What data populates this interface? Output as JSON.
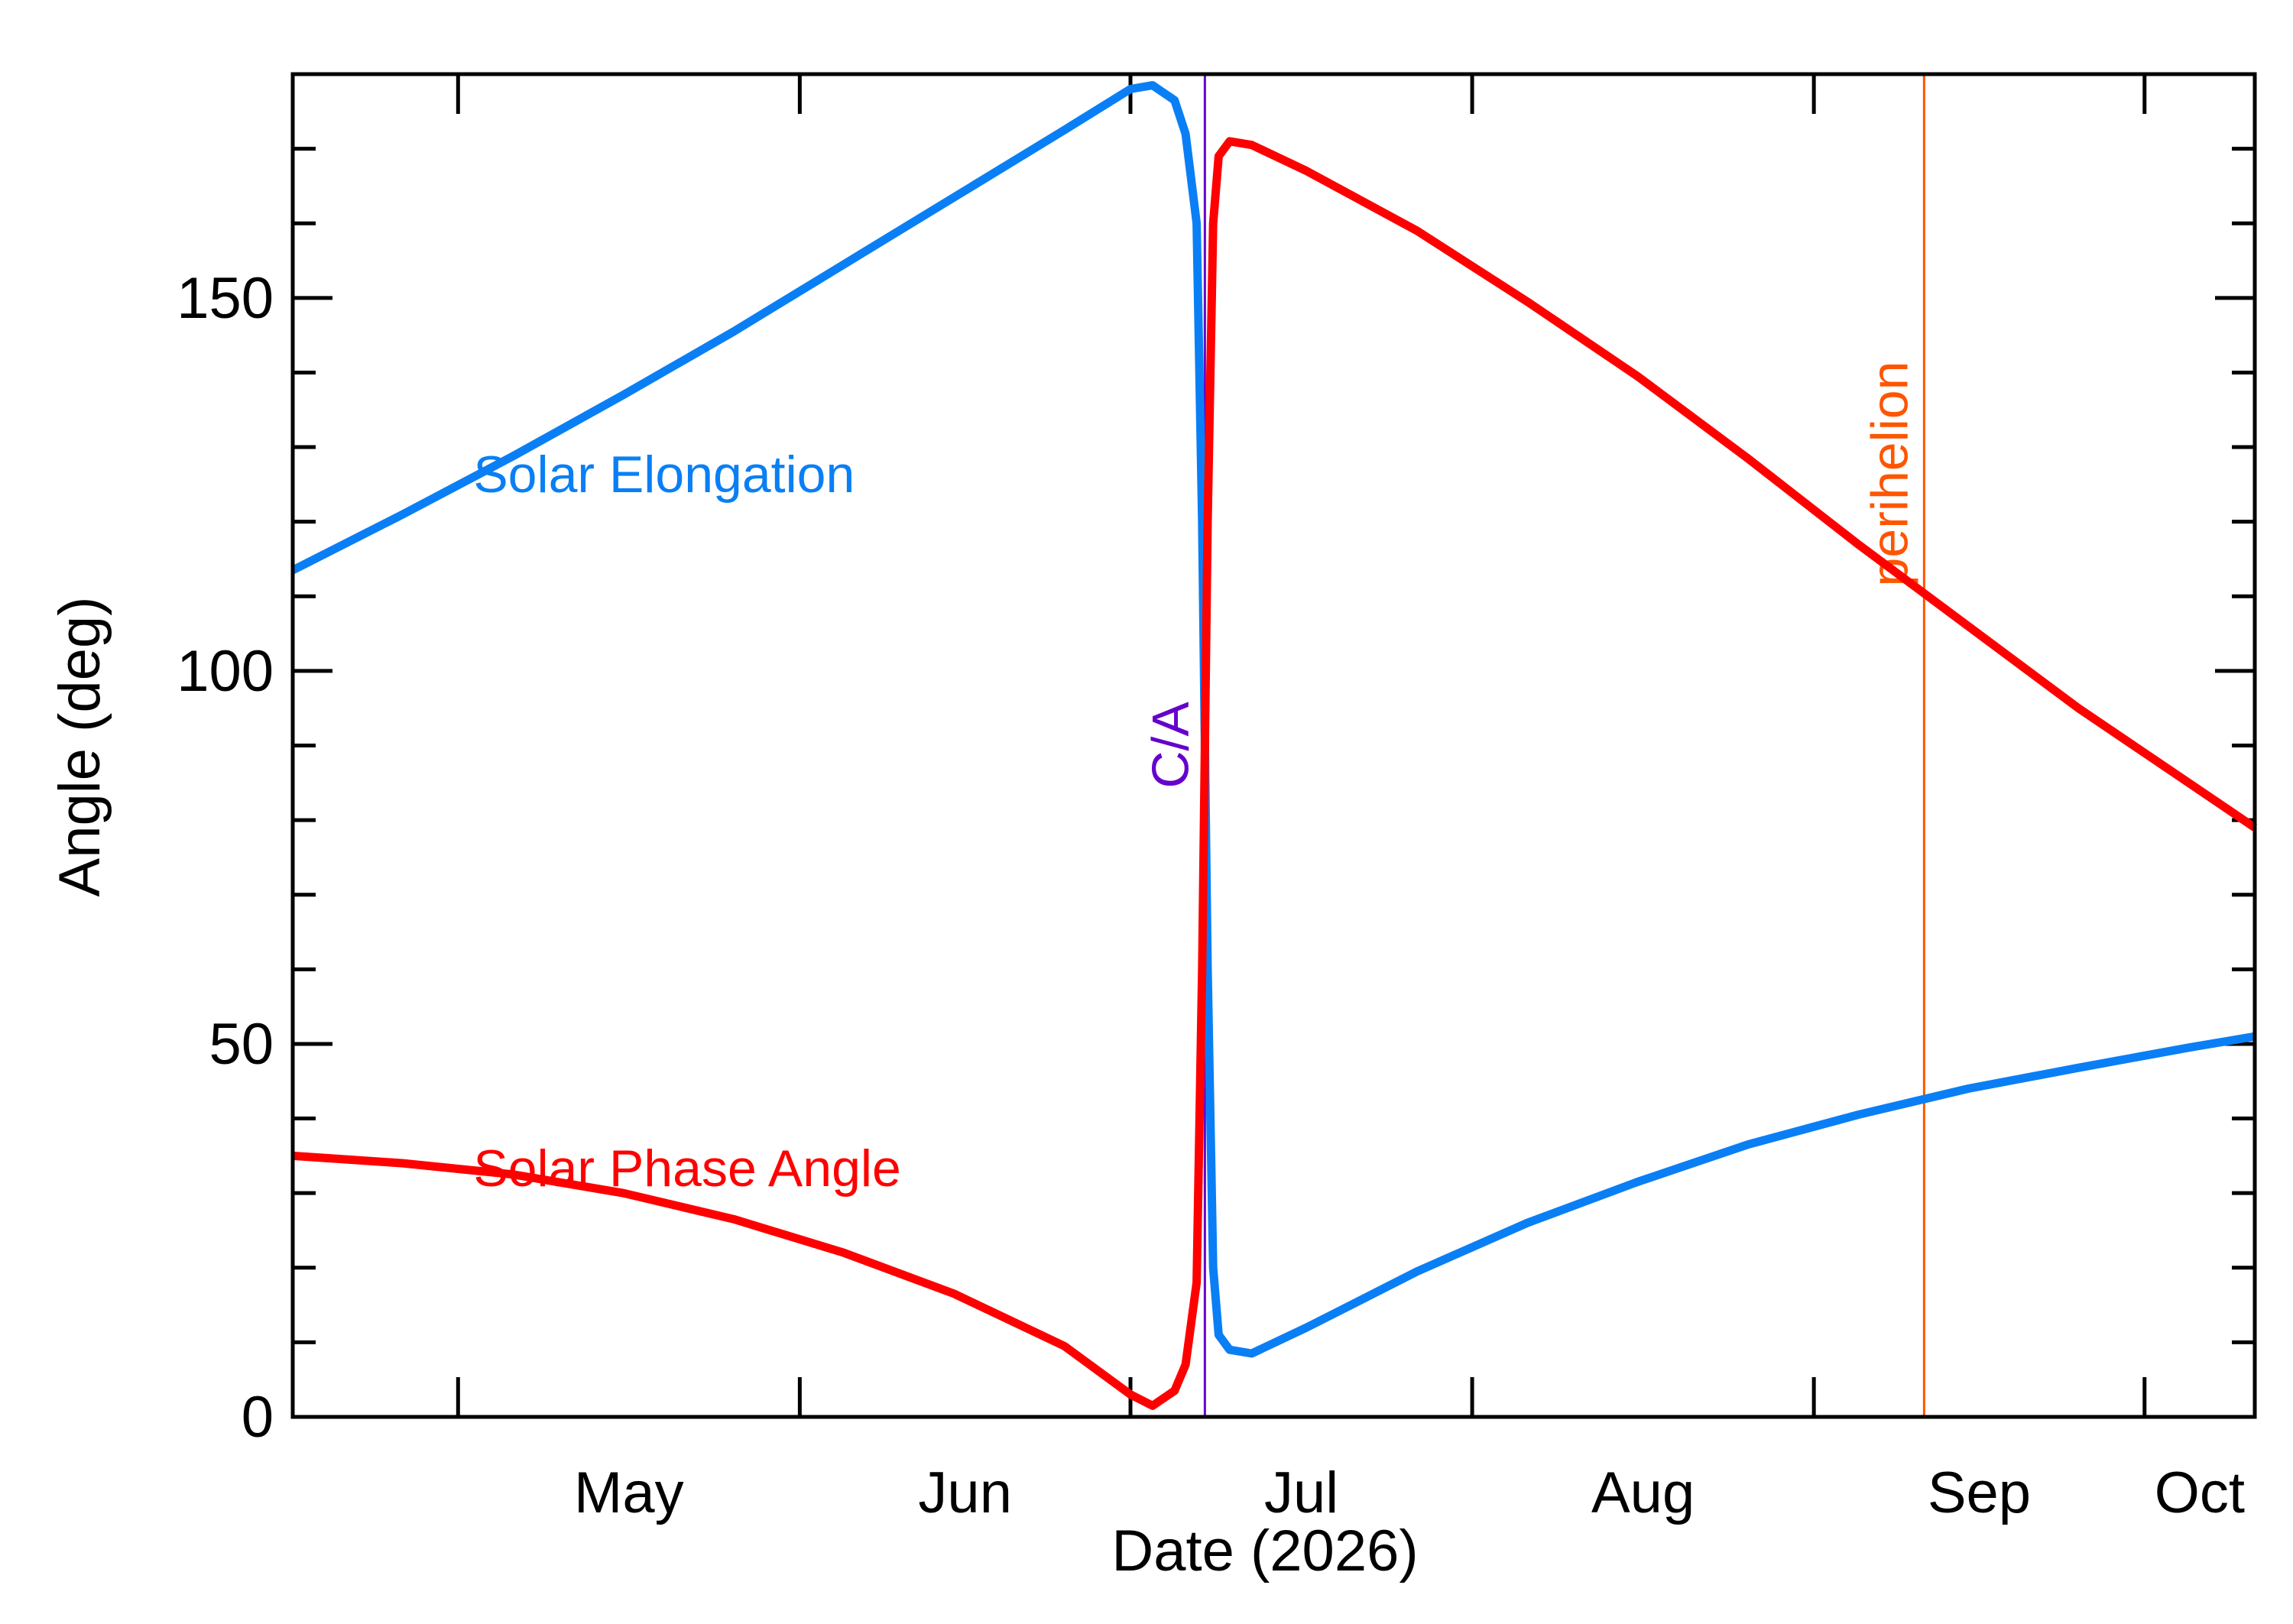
{
  "chart_data": {
    "type": "line",
    "xlabel": "Date (2026)",
    "ylabel": "Angle (deg)",
    "x_unit": "date",
    "xlim": [
      "2026-04-16",
      "2026-10-11"
    ],
    "ylim": [
      0,
      180
    ],
    "x_ticks": [
      {
        "label": "May",
        "date": "2026-05-01"
      },
      {
        "label": "Jun",
        "date": "2026-06-01"
      },
      {
        "label": "Jul",
        "date": "2026-07-01"
      },
      {
        "label": "Aug",
        "date": "2026-08-01"
      },
      {
        "label": "Sep",
        "date": "2026-09-01"
      },
      {
        "label": "Oct",
        "date": "2026-10-01"
      }
    ],
    "y_ticks": [
      0,
      50,
      100,
      150
    ],
    "grid": false,
    "series": [
      {
        "name": "Solar Elongation",
        "color": "#0a7ff5",
        "points": [
          [
            "2026-04-16",
            113.5
          ],
          [
            "2026-04-26",
            121.0
          ],
          [
            "2026-05-06",
            128.8
          ],
          [
            "2026-05-16",
            137.0
          ],
          [
            "2026-05-26",
            145.5
          ],
          [
            "2026-06-05",
            154.5
          ],
          [
            "2026-06-15",
            163.5
          ],
          [
            "2026-06-25",
            172.5
          ],
          [
            "2026-07-01",
            178.0
          ],
          [
            "2026-07-03",
            178.5
          ],
          [
            "2026-07-05",
            176.5
          ],
          [
            "2026-07-06",
            172.0
          ],
          [
            "2026-07-07",
            160.0
          ],
          [
            "2026-07-07T12:00",
            120.0
          ],
          [
            "2026-07-08",
            60.0
          ],
          [
            "2026-07-08T12:00",
            20.0
          ],
          [
            "2026-07-09",
            11.0
          ],
          [
            "2026-07-10",
            9.0
          ],
          [
            "2026-07-12",
            8.5
          ],
          [
            "2026-07-17",
            12.0
          ],
          [
            "2026-07-27",
            19.5
          ],
          [
            "2026-08-06",
            26.0
          ],
          [
            "2026-08-16",
            31.5
          ],
          [
            "2026-08-26",
            36.5
          ],
          [
            "2026-09-05",
            40.5
          ],
          [
            "2026-09-15",
            44.0
          ],
          [
            "2026-09-25",
            46.8
          ],
          [
            "2026-10-05",
            49.5
          ],
          [
            "2026-10-11",
            51.0
          ]
        ]
      },
      {
        "name": "Solar Phase Angle",
        "color": "#ff0000",
        "points": [
          [
            "2026-04-16",
            35.0
          ],
          [
            "2026-04-26",
            34.0
          ],
          [
            "2026-05-06",
            32.5
          ],
          [
            "2026-05-16",
            30.0
          ],
          [
            "2026-05-26",
            26.5
          ],
          [
            "2026-06-05",
            22.0
          ],
          [
            "2026-06-15",
            16.5
          ],
          [
            "2026-06-25",
            9.5
          ],
          [
            "2026-07-01",
            3.0
          ],
          [
            "2026-07-03",
            1.5
          ],
          [
            "2026-07-05",
            3.5
          ],
          [
            "2026-07-06",
            7.0
          ],
          [
            "2026-07-07",
            18.0
          ],
          [
            "2026-07-07T12:00",
            60.0
          ],
          [
            "2026-07-08",
            120.0
          ],
          [
            "2026-07-08T12:00",
            160.0
          ],
          [
            "2026-07-09",
            169.0
          ],
          [
            "2026-07-10",
            171.0
          ],
          [
            "2026-07-12",
            170.5
          ],
          [
            "2026-07-17",
            167.0
          ],
          [
            "2026-07-27",
            159.0
          ],
          [
            "2026-08-06",
            149.5
          ],
          [
            "2026-08-16",
            139.5
          ],
          [
            "2026-08-26",
            128.5
          ],
          [
            "2026-09-05",
            117.0
          ],
          [
            "2026-09-15",
            106.0
          ],
          [
            "2026-09-25",
            95.0
          ],
          [
            "2026-10-05",
            85.0
          ],
          [
            "2026-10-11",
            79.0
          ]
        ]
      }
    ],
    "annotations": [
      {
        "text": "Solar Elongation",
        "color": "#0a7ff5",
        "date": "2026-05-01",
        "y": 126
      },
      {
        "text": "Solar Phase Angle",
        "color": "#ff0000",
        "date": "2026-05-01",
        "y": 33
      }
    ],
    "vlines": [
      {
        "label": "C/A",
        "date": "2026-07-07T18:00",
        "color": "#6600cc"
      },
      {
        "label": "perihelion",
        "date": "2026-09-11",
        "color": "#ff5500"
      }
    ]
  }
}
